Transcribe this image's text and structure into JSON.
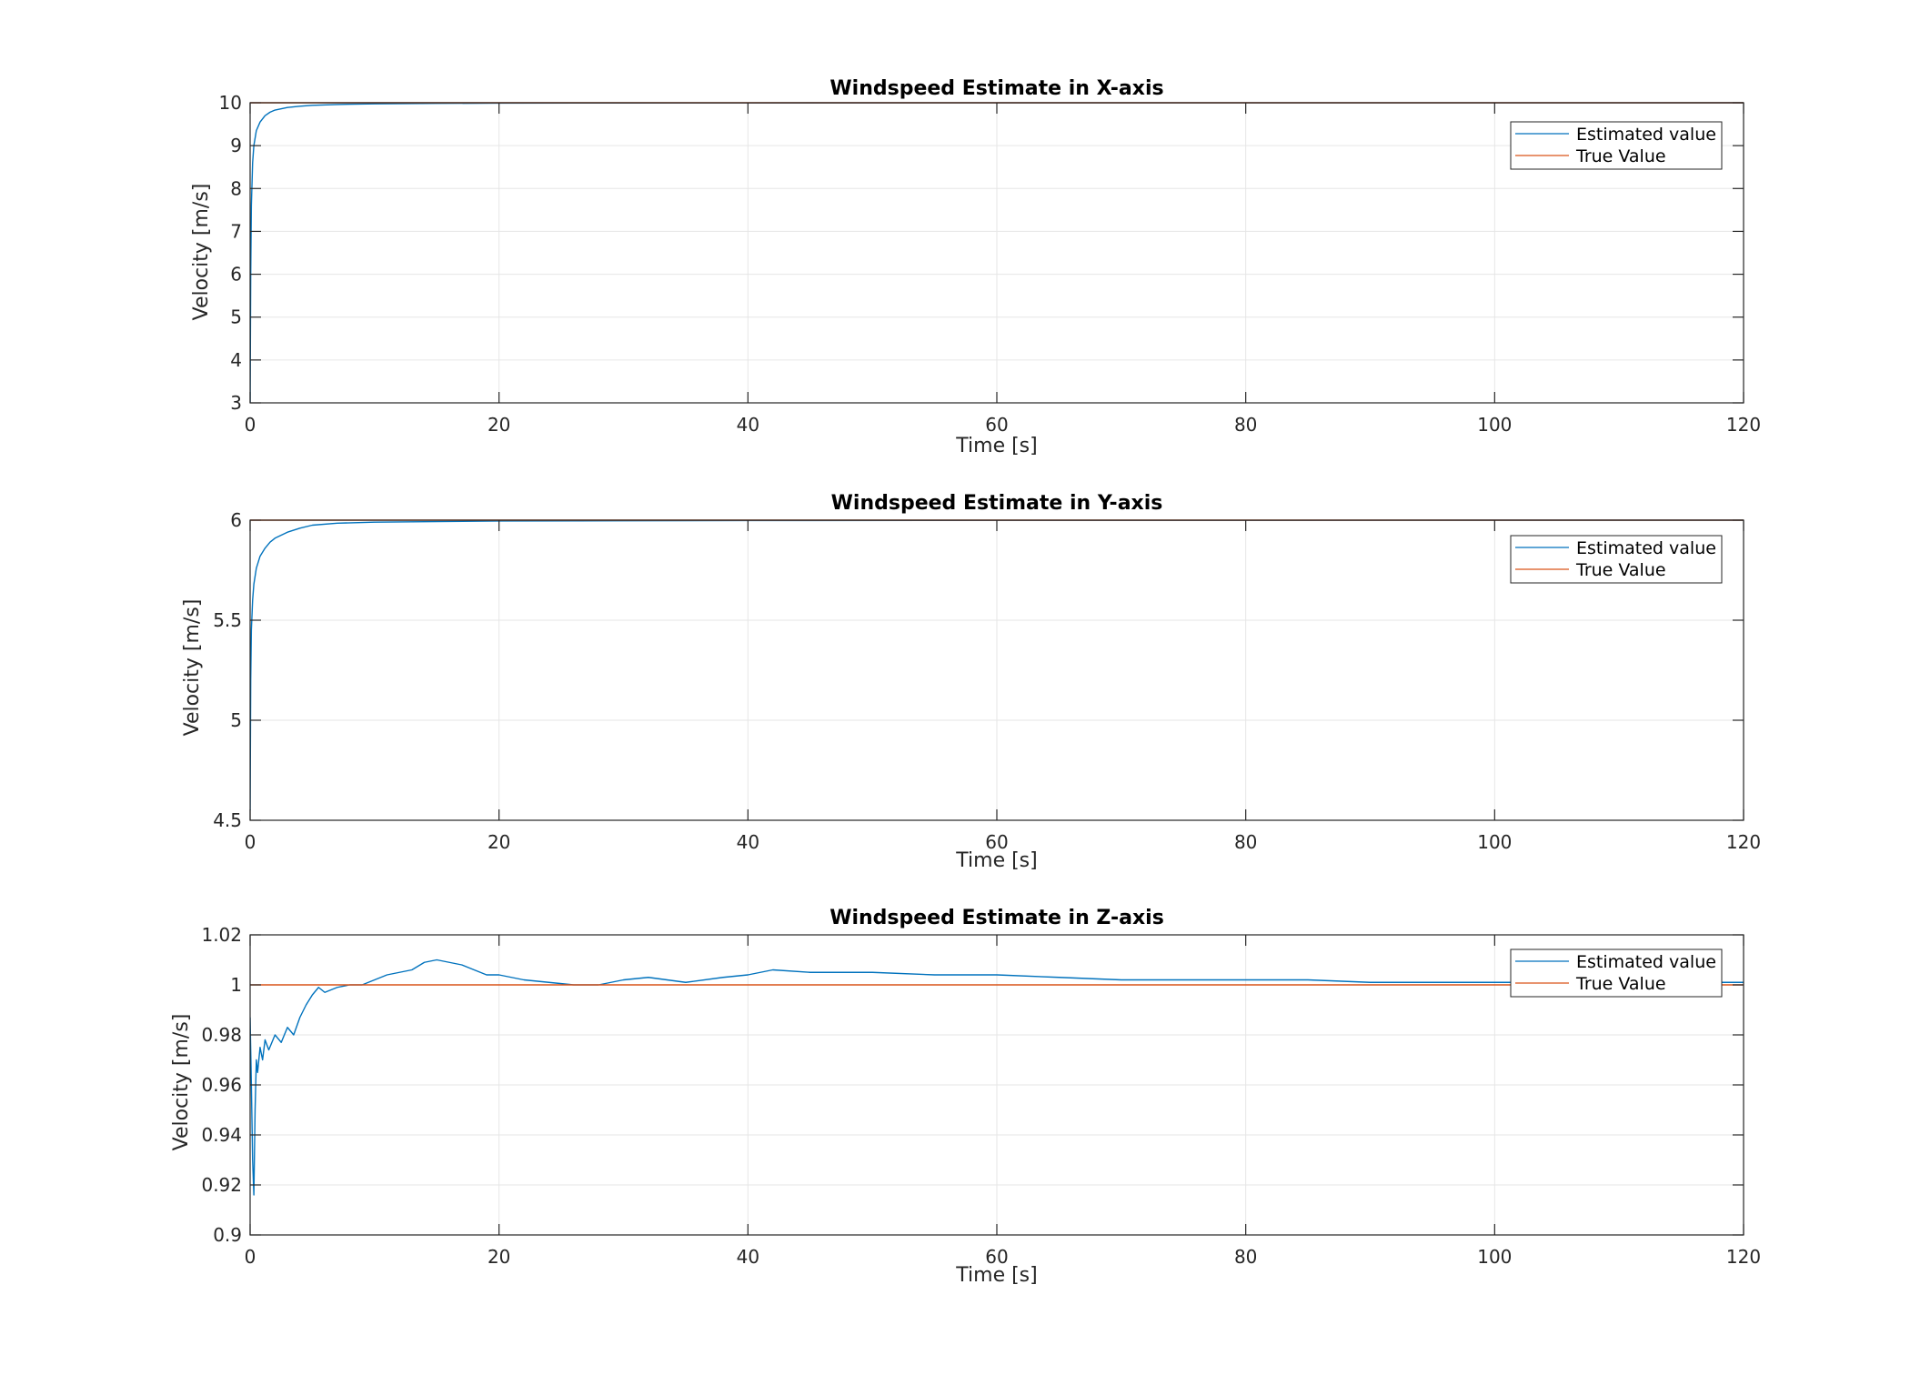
{
  "colors": {
    "estimated": "#0072BD",
    "true": "#D95319",
    "grid": "#E6E6E6",
    "axis": "#262626"
  },
  "chart_data": [
    {
      "type": "line",
      "title": "Windspeed Estimate in X-axis",
      "xlabel": "Time [s]",
      "ylabel": "Velocity [m/s]",
      "xlim": [
        0,
        120
      ],
      "ylim": [
        3,
        10
      ],
      "xticks": [
        0,
        20,
        40,
        60,
        80,
        100,
        120
      ],
      "yticks": [
        3,
        4,
        5,
        6,
        7,
        8,
        9,
        10
      ],
      "yticklabels": [
        "3",
        "4",
        "5",
        "6",
        "7",
        "8",
        "9",
        "10"
      ],
      "grid": true,
      "legend_position": "top-right",
      "series": [
        {
          "name": "Estimated value",
          "color": "#0072BD",
          "x": [
            0,
            0.05,
            0.1,
            0.2,
            0.3,
            0.5,
            0.8,
            1.2,
            1.6,
            2,
            3,
            4,
            5,
            7,
            10,
            15,
            20,
            30,
            40,
            60,
            80,
            100,
            120
          ],
          "y": [
            3.0,
            6.0,
            7.6,
            8.6,
            9.0,
            9.35,
            9.55,
            9.7,
            9.78,
            9.83,
            9.89,
            9.92,
            9.94,
            9.96,
            9.975,
            9.985,
            9.99,
            9.995,
            9.997,
            9.998,
            9.999,
            9.999,
            10.0
          ]
        },
        {
          "name": "True Value",
          "color": "#D95319",
          "x": [
            0,
            120
          ],
          "y": [
            10,
            10
          ]
        }
      ]
    },
    {
      "type": "line",
      "title": "Windspeed Estimate in Y-axis",
      "xlabel": "Time [s]",
      "ylabel": "Velocity [m/s]",
      "xlim": [
        0,
        120
      ],
      "ylim": [
        4.5,
        6
      ],
      "xticks": [
        0,
        20,
        40,
        60,
        80,
        100,
        120
      ],
      "yticks": [
        4.5,
        5,
        5.5,
        6
      ],
      "yticklabels": [
        "4.5",
        "5",
        "5.5",
        "6"
      ],
      "grid": true,
      "legend_position": "top-right",
      "series": [
        {
          "name": "Estimated value",
          "color": "#0072BD",
          "x": [
            0,
            0.05,
            0.1,
            0.2,
            0.3,
            0.5,
            0.8,
            1.2,
            1.6,
            2,
            3,
            4,
            5,
            7,
            10,
            15,
            20,
            30,
            40,
            60,
            80,
            100,
            120
          ],
          "y": [
            4.55,
            5.2,
            5.45,
            5.6,
            5.68,
            5.76,
            5.82,
            5.86,
            5.89,
            5.91,
            5.94,
            5.96,
            5.975,
            5.985,
            5.99,
            5.993,
            5.996,
            5.997,
            5.998,
            5.999,
            5.999,
            6.0,
            6.0
          ]
        },
        {
          "name": "True Value",
          "color": "#D95319",
          "x": [
            0,
            120
          ],
          "y": [
            6,
            6
          ]
        }
      ]
    },
    {
      "type": "line",
      "title": "Windspeed Estimate in Z-axis",
      "xlabel": "Time [s]",
      "ylabel": "Velocity [m/s]",
      "xlim": [
        0,
        120
      ],
      "ylim": [
        0.9,
        1.02
      ],
      "xticks": [
        0,
        20,
        40,
        60,
        80,
        100,
        120
      ],
      "yticks": [
        0.9,
        0.92,
        0.94,
        0.96,
        0.98,
        1,
        1.02
      ],
      "yticklabels": [
        "0.9",
        "0.92",
        "0.94",
        "0.96",
        "0.98",
        "1",
        "1.02"
      ],
      "grid": true,
      "legend_position": "top-right",
      "series": [
        {
          "name": "Estimated value",
          "color": "#0072BD",
          "x": [
            0,
            0.1,
            0.2,
            0.3,
            0.4,
            0.5,
            0.6,
            0.8,
            1.0,
            1.2,
            1.5,
            2,
            2.5,
            3,
            3.5,
            4,
            4.5,
            5,
            5.5,
            6,
            7,
            8,
            9,
            10,
            11,
            12,
            13,
            14,
            15,
            16,
            17,
            18,
            19,
            20,
            22,
            24,
            26,
            28,
            30,
            32,
            35,
            38,
            40,
            42,
            45,
            50,
            55,
            60,
            65,
            70,
            75,
            80,
            85,
            90,
            95,
            100,
            105,
            110,
            115,
            120
          ],
          "y": [
            0.987,
            0.96,
            0.93,
            0.916,
            0.95,
            0.97,
            0.965,
            0.975,
            0.97,
            0.978,
            0.974,
            0.98,
            0.977,
            0.983,
            0.98,
            0.987,
            0.992,
            0.996,
            0.999,
            0.997,
            0.999,
            1.0,
            1.0,
            1.002,
            1.004,
            1.005,
            1.006,
            1.009,
            1.01,
            1.009,
            1.008,
            1.006,
            1.004,
            1.004,
            1.002,
            1.001,
            1.0,
            1.0,
            1.002,
            1.003,
            1.001,
            1.003,
            1.004,
            1.006,
            1.005,
            1.005,
            1.004,
            1.004,
            1.003,
            1.002,
            1.002,
            1.002,
            1.002,
            1.001,
            1.001,
            1.001,
            1.001,
            1.001,
            1.001,
            1.001
          ]
        },
        {
          "name": "True Value",
          "color": "#D95319",
          "x": [
            0,
            120
          ],
          "y": [
            1,
            1
          ]
        }
      ]
    }
  ]
}
